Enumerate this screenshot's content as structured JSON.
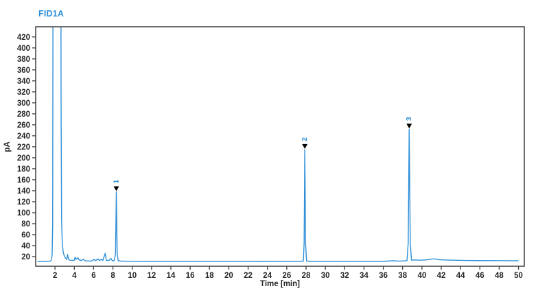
{
  "title": "FID1A",
  "colors": {
    "trace": "#2e8fd8",
    "title": "#2e8fd8",
    "axis": "#3f3f3f",
    "tick_text": "#262626",
    "peak_marker": "#000000",
    "background": "#ffffff"
  },
  "chart_data": {
    "type": "line",
    "title": "FID1A",
    "xlabel": "Time [min]",
    "ylabel": "pA",
    "xlim": [
      0,
      50.6
    ],
    "ylim": [
      2.5,
      438.5
    ],
    "x_ticks": [
      2,
      4,
      6,
      8,
      10,
      12,
      14,
      16,
      18,
      20,
      22,
      24,
      26,
      28,
      30,
      32,
      34,
      36,
      38,
      40,
      42,
      44,
      46,
      48,
      50
    ],
    "y_ticks": [
      20,
      40,
      60,
      80,
      100,
      120,
      140,
      160,
      180,
      200,
      220,
      240,
      260,
      280,
      300,
      320,
      340,
      360,
      380,
      400,
      420
    ],
    "grid": false,
    "legend": "none",
    "baseline_pA": 11.5,
    "solvent_peak": {
      "time_min": 2.2,
      "clipped_above_pA": 438.5
    },
    "peaks": [
      {
        "label": "1",
        "time_min": 8.35,
        "height_pA": 138
      },
      {
        "label": "2",
        "time_min": 27.87,
        "height_pA": 215
      },
      {
        "label": "3",
        "time_min": 38.68,
        "height_pA": 252
      }
    ],
    "trace": [
      [
        0.2,
        11.2
      ],
      [
        0.8,
        11.2
      ],
      [
        1.2,
        11.3
      ],
      [
        1.45,
        11.5
      ],
      [
        1.6,
        13
      ],
      [
        1.7,
        22
      ],
      [
        1.76,
        80
      ],
      [
        1.83,
        1000
      ],
      [
        2.57,
        1000
      ],
      [
        2.63,
        300
      ],
      [
        2.68,
        90
      ],
      [
        2.75,
        45
      ],
      [
        2.85,
        28
      ],
      [
        2.95,
        22
      ],
      [
        3.1,
        17
      ],
      [
        3.22,
        15
      ],
      [
        3.3,
        24
      ],
      [
        3.4,
        15
      ],
      [
        3.55,
        13.5
      ],
      [
        3.8,
        13
      ],
      [
        4.0,
        13.5
      ],
      [
        4.08,
        19
      ],
      [
        4.2,
        15
      ],
      [
        4.38,
        18
      ],
      [
        4.5,
        14
      ],
      [
        4.75,
        13
      ],
      [
        4.95,
        15.5
      ],
      [
        5.1,
        12.5
      ],
      [
        5.4,
        12
      ],
      [
        5.8,
        12.2
      ],
      [
        6.05,
        15
      ],
      [
        6.2,
        12.5
      ],
      [
        6.45,
        16
      ],
      [
        6.6,
        13
      ],
      [
        6.8,
        15
      ],
      [
        6.95,
        13
      ],
      [
        7.2,
        26
      ],
      [
        7.32,
        13
      ],
      [
        7.6,
        13
      ],
      [
        7.78,
        17
      ],
      [
        7.92,
        13
      ],
      [
        8.12,
        12.5
      ],
      [
        8.27,
        25
      ],
      [
        8.35,
        138
      ],
      [
        8.44,
        25
      ],
      [
        8.55,
        12.5
      ],
      [
        8.8,
        12
      ],
      [
        9.5,
        11.5
      ],
      [
        11,
        11.3
      ],
      [
        14,
        11.2
      ],
      [
        18,
        11.2
      ],
      [
        22,
        11.2
      ],
      [
        26,
        11.3
      ],
      [
        27.4,
        11.4
      ],
      [
        27.72,
        12
      ],
      [
        27.8,
        45
      ],
      [
        27.87,
        215
      ],
      [
        27.95,
        45
      ],
      [
        28.05,
        12
      ],
      [
        28.5,
        11.4
      ],
      [
        30,
        11.3
      ],
      [
        33,
        11.3
      ],
      [
        36,
        11.4
      ],
      [
        37.1,
        12.5
      ],
      [
        37.5,
        11.8
      ],
      [
        38.1,
        12.3
      ],
      [
        38.45,
        12.5
      ],
      [
        38.58,
        45
      ],
      [
        38.68,
        252
      ],
      [
        38.79,
        45
      ],
      [
        38.92,
        13.5
      ],
      [
        39.3,
        14
      ],
      [
        39.8,
        13.5
      ],
      [
        40.4,
        14
      ],
      [
        41.0,
        15.5
      ],
      [
        41.3,
        16
      ],
      [
        41.7,
        14.5
      ],
      [
        42.3,
        14
      ],
      [
        43.2,
        13.5
      ],
      [
        44.5,
        13
      ],
      [
        46,
        12.8
      ],
      [
        47.5,
        12.7
      ],
      [
        49,
        12.6
      ],
      [
        50,
        12.5
      ]
    ]
  }
}
